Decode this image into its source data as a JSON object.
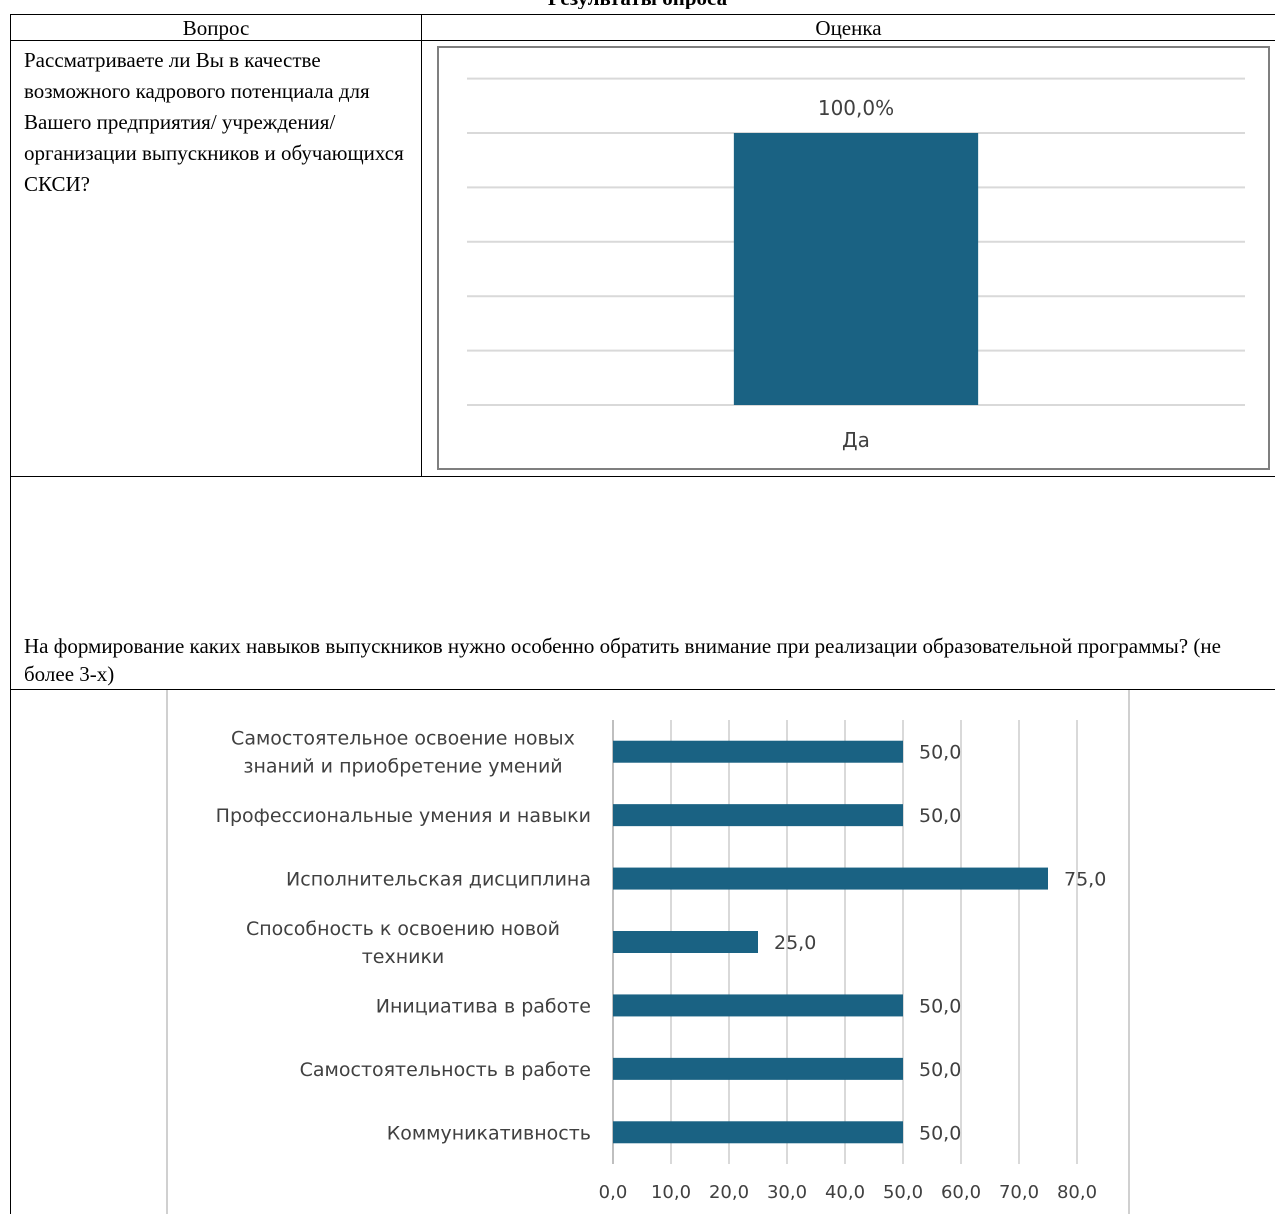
{
  "document": {
    "title": "Результаты опроса"
  },
  "table": {
    "headers": [
      "Вопрос",
      "Оценка"
    ],
    "question1": "Рассматриваете ли Вы в качестве возможного кадрового потенциала для Вашего предприятия/ учреждения/ организации выпускников и обучающихся СКСИ?",
    "question2": "На формирование каких навыков выпускников нужно особенно обратить внимание при реализации образовательной программы?  (не более 3-х)"
  },
  "chart_data": [
    {
      "type": "bar",
      "categories": [
        "Да"
      ],
      "values": [
        100.0
      ],
      "value_labels": [
        "100,0%"
      ],
      "ylim": [
        0,
        120
      ],
      "grid": true,
      "bar_color": "#1a6283",
      "gridline_color": "#d9d9d9"
    },
    {
      "type": "bar",
      "orientation": "horizontal",
      "categories": [
        [
          "Самостоятельное освоение новых",
          "знаний и приобретение умений"
        ],
        [
          "Профессиональные умения и навыки"
        ],
        [
          "Исполнительская дисциплина"
        ],
        [
          "Способность к освоению новой",
          "техники"
        ],
        [
          "Инициатива в работе"
        ],
        [
          "Самостоятельность в работе"
        ],
        [
          "Коммуникативность"
        ]
      ],
      "values": [
        50.0,
        50.0,
        75.0,
        25.0,
        50.0,
        50.0,
        50.0
      ],
      "value_labels": [
        "50,0",
        "50,0",
        "75,0",
        "25,0",
        "50,0",
        "50,0",
        "50,0"
      ],
      "xticks": [
        "0,0",
        "10,0",
        "20,0",
        "30,0",
        "40,0",
        "50,0",
        "60,0",
        "70,0",
        "80,0"
      ],
      "xlim": [
        0,
        80
      ],
      "grid": true,
      "bar_color": "#1a6283",
      "gridline_color": "#d9d9d9"
    }
  ]
}
